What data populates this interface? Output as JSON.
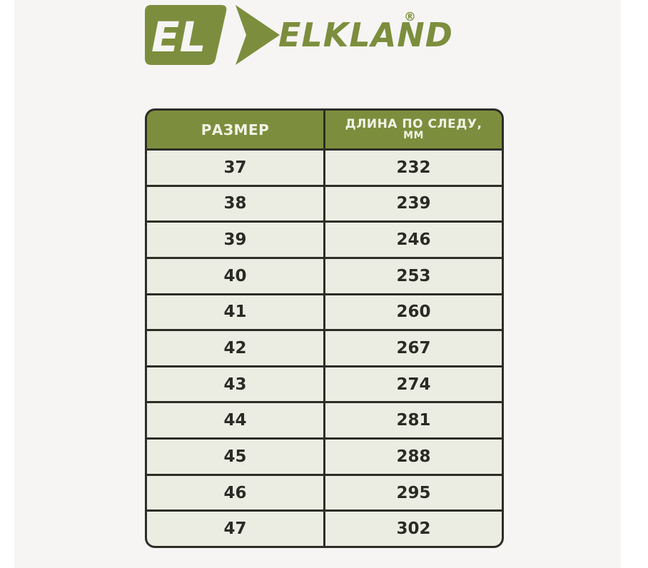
{
  "brand": {
    "emblem_text": "EL",
    "wordmark": "ELKLAND",
    "registered_mark": "®"
  },
  "colors": {
    "accent_olive": "#7c8e3d",
    "border_dark": "#2d2d27",
    "cell_background": "#ecede2",
    "page_background": "#f6f5f3",
    "header_text": "#f2f2e6"
  },
  "table_header": {
    "col1_line1": "РАЗМЕР",
    "col2_line1": "ДЛИНА ПО СЛЕДУ,",
    "col2_line2": "ММ"
  },
  "chart_data": {
    "type": "table",
    "title": "",
    "columns": [
      "РАЗМЕР",
      "ДЛИНА ПО СЛЕДУ, ММ"
    ],
    "rows": [
      [
        "37",
        "232"
      ],
      [
        "38",
        "239"
      ],
      [
        "39",
        "246"
      ],
      [
        "40",
        "253"
      ],
      [
        "41",
        "260"
      ],
      [
        "42",
        "267"
      ],
      [
        "43",
        "274"
      ],
      [
        "44",
        "281"
      ],
      [
        "45",
        "288"
      ],
      [
        "46",
        "295"
      ],
      [
        "47",
        "302"
      ]
    ]
  }
}
